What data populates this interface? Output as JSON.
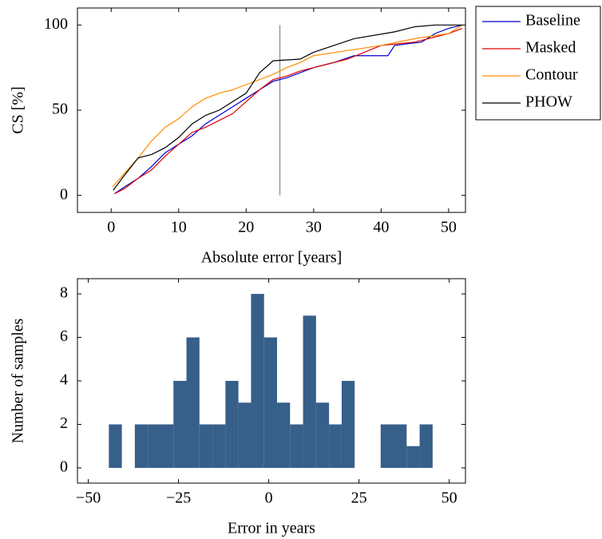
{
  "chart_data": [
    {
      "type": "line",
      "xlabel": "Absolute error [years]",
      "ylabel": "CS [%]",
      "xlim": [
        -5,
        52.5
      ],
      "ylim": [
        -10,
        110
      ],
      "xticks": [
        0,
        10,
        20,
        30,
        40,
        50
      ],
      "yticks": [
        0,
        50,
        100
      ],
      "vline": {
        "x": 25,
        "y": [
          0,
          100
        ],
        "color": "#888888"
      },
      "legend": "outside upper right",
      "series": [
        {
          "name": "Baseline",
          "color": "#0000cc",
          "x": [
            0.5,
            2,
            4,
            6,
            8,
            10,
            12,
            14,
            16,
            18,
            20,
            22,
            24,
            26,
            28,
            30,
            33,
            36,
            41,
            42,
            46,
            48,
            50,
            52
          ],
          "values": [
            1,
            5,
            10,
            17,
            25,
            30,
            35,
            42,
            47,
            52,
            57,
            62,
            67,
            69,
            72,
            75,
            78,
            82,
            82,
            88,
            90,
            95,
            98,
            100
          ]
        },
        {
          "name": "Masked",
          "color": "#dd0000",
          "x": [
            0.5,
            2,
            4,
            6,
            8,
            10,
            12,
            14,
            16,
            18,
            20,
            22,
            24,
            26,
            28,
            30,
            35,
            40,
            45,
            50,
            52
          ],
          "values": [
            1,
            4,
            10,
            15,
            23,
            30,
            37,
            40,
            44,
            48,
            55,
            62,
            68,
            70,
            73,
            75,
            80,
            88,
            90,
            95,
            98
          ]
        },
        {
          "name": "Contour",
          "color": "#ff8c00",
          "x": [
            0.2,
            2,
            4,
            6,
            8,
            10,
            12,
            14,
            16,
            18,
            20,
            22,
            24,
            26,
            28,
            30,
            35,
            40,
            45,
            50,
            52
          ],
          "values": [
            5,
            13,
            22,
            32,
            40,
            45,
            52,
            57,
            60,
            62,
            65,
            68,
            71,
            75,
            78,
            82,
            85,
            88,
            92,
            95,
            100
          ]
        },
        {
          "name": "PHOW",
          "color": "#000000",
          "x": [
            0.3,
            2,
            4,
            6,
            8,
            10,
            12,
            14,
            16,
            18,
            20,
            22,
            24,
            28,
            30,
            33,
            36,
            42,
            45,
            48,
            52
          ],
          "values": [
            3,
            12,
            22,
            24,
            28,
            34,
            42,
            47,
            50,
            55,
            60,
            72,
            79,
            80,
            84,
            88,
            92,
            96,
            99,
            100,
            100
          ]
        }
      ]
    },
    {
      "type": "histogram",
      "xlabel": "Error in years",
      "ylabel": "Number of samples",
      "color": "#365f8a",
      "xlim": [
        -53,
        54.5
      ],
      "ylim": [
        -0.7,
        8.7
      ],
      "xticks": [
        {
          "value": -50,
          "label": "−50"
        },
        {
          "value": -25,
          "label": "−25"
        },
        0,
        25,
        50
      ],
      "yticks": [
        0,
        2,
        4,
        6,
        8
      ],
      "bins": [
        -44.3,
        -40.7,
        -37.1,
        -33.5,
        -30.0,
        -26.4,
        -22.8,
        -19.2,
        -15.6,
        -12.0,
        -8.4,
        -4.9,
        -1.3,
        2.3,
        5.9,
        9.5,
        13.1,
        16.7,
        20.2,
        23.8,
        27.4,
        31.0,
        34.6,
        38.2,
        41.8,
        45.4
      ],
      "values": [
        2,
        0,
        2,
        2,
        2,
        4,
        6,
        2,
        2,
        4,
        3,
        8,
        6,
        3,
        2,
        7,
        3,
        2,
        4,
        0,
        0,
        2,
        2,
        1,
        2
      ]
    }
  ]
}
